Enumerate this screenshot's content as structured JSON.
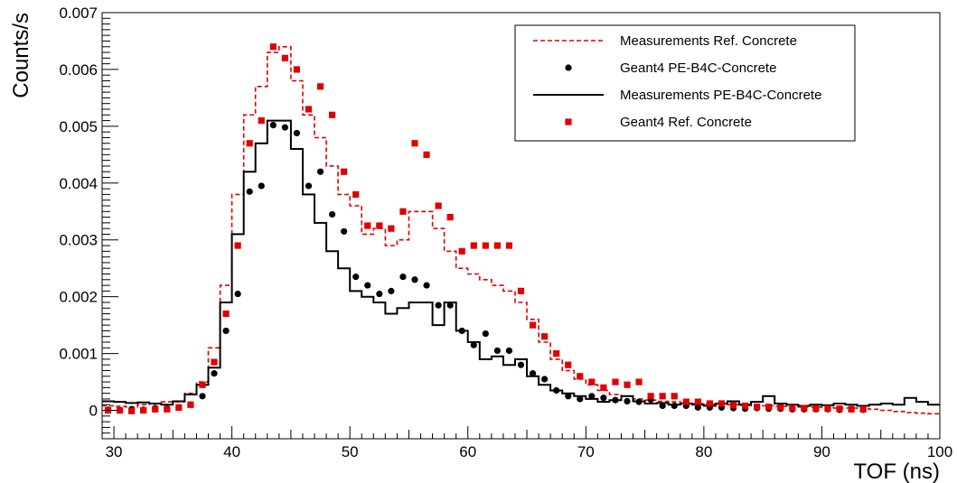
{
  "chart_data": {
    "type": "scatter",
    "xlabel": "TOF (ns)",
    "ylabel": "Counts/s",
    "xlim": [
      29,
      100
    ],
    "ylim": [
      -0.0005,
      0.007
    ],
    "x_ticks": [
      30,
      40,
      50,
      60,
      70,
      80,
      90,
      100
    ],
    "y_ticks": [
      0,
      0.001,
      0.002,
      0.003,
      0.004,
      0.005,
      0.006,
      0.007
    ],
    "y_tick_labels": [
      "0",
      "0.001",
      "0.002",
      "0.003",
      "0.004",
      "0.005",
      "0.006",
      "0.007"
    ],
    "legend_position": "top-right",
    "grid": false,
    "series": [
      {
        "name": "Measurements Ref. Concrete",
        "kind": "step",
        "style": "dashed",
        "color": "#e00000",
        "x": [
          29,
          30,
          31,
          32,
          33,
          34,
          35,
          36,
          37,
          38,
          39,
          40,
          41,
          42,
          43,
          44,
          45,
          46,
          47,
          48,
          49,
          50,
          51,
          52,
          53,
          54,
          55,
          56,
          57,
          58,
          59,
          60,
          61,
          62,
          63,
          64,
          65,
          66,
          67,
          68,
          69,
          70,
          71,
          72,
          73,
          74,
          75,
          76,
          77,
          78,
          79,
          80,
          81,
          82,
          83,
          84,
          85,
          86,
          87,
          88,
          89,
          90,
          91,
          92,
          93,
          94,
          95,
          96,
          97,
          98,
          99
        ],
        "y": [
          8e-05,
          7e-05,
          6e-05,
          0.0001,
          0.00012,
          0.00015,
          0.00015,
          0.0003,
          0.0005,
          0.0011,
          0.0022,
          0.0038,
          0.0052,
          0.0057,
          0.0063,
          0.0064,
          0.0058,
          0.0052,
          0.0048,
          0.0043,
          0.0038,
          0.0036,
          0.0031,
          0.0032,
          0.0029,
          0.003,
          0.0035,
          0.0035,
          0.0032,
          0.0028,
          0.0025,
          0.0024,
          0.0023,
          0.0022,
          0.0021,
          0.0019,
          0.0016,
          0.0012,
          0.0009,
          0.0007,
          0.00055,
          0.00045,
          0.00035,
          0.00028,
          0.00025,
          0.0002,
          0.00018,
          0.00016,
          0.00015,
          0.00013,
          0.00012,
          0.00011,
          0.0001,
          0.0001,
          9e-05,
          8e-05,
          8e-05,
          7e-05,
          7e-05,
          6e-05,
          6e-05,
          5e-05,
          4e-05,
          4e-05,
          3e-05,
          2e-05,
          0.0,
          -2e-05,
          -4e-05,
          -5e-05,
          -6e-05
        ]
      },
      {
        "name": "Geant4 PE-B4C-Concrete",
        "kind": "markers",
        "marker": "circle",
        "color": "#000000",
        "x": [
          29.5,
          30.5,
          31.5,
          32.5,
          33.5,
          34.5,
          35.5,
          36.5,
          37.5,
          38.5,
          39.5,
          40.5,
          41.5,
          42.5,
          43.5,
          44.5,
          45.5,
          46.5,
          47.5,
          48.5,
          49.5,
          50.5,
          51.5,
          52.5,
          53.5,
          54.5,
          55.5,
          56.5,
          57.5,
          58.5,
          59.5,
          60.5,
          61.5,
          62.5,
          63.5,
          64.5,
          65.5,
          66.5,
          67.5,
          68.5,
          69.5,
          70.5,
          71.5,
          72.5,
          73.5,
          74.5,
          75.5,
          76.5,
          77.5,
          78.5,
          79.5,
          80.5,
          81.5,
          82.5,
          83.5,
          84.5,
          85.5,
          86.5,
          87.5,
          88.5,
          89.5,
          90.5,
          91.5,
          92.5,
          93.5
        ],
        "y": [
          1e-05,
          0.0,
          2e-05,
          1e-05,
          4e-05,
          3e-05,
          5e-05,
          0.0001,
          0.00025,
          0.00065,
          0.0014,
          0.00205,
          0.00385,
          0.00395,
          0.00502,
          0.00498,
          0.00488,
          0.00395,
          0.0042,
          0.00345,
          0.00315,
          0.00235,
          0.0022,
          0.00205,
          0.0021,
          0.00235,
          0.0023,
          0.0022,
          0.00185,
          0.00185,
          0.0014,
          0.00115,
          0.00135,
          0.00105,
          0.00105,
          0.0008,
          0.00065,
          0.00055,
          0.00035,
          0.00025,
          0.0002,
          0.00025,
          0.00022,
          0.00018,
          0.00016,
          0.00015,
          0.00019,
          8e-05,
          8e-05,
          8e-05,
          5e-05,
          5e-05,
          5e-05,
          4e-05,
          3e-05,
          4e-05,
          3e-05,
          3e-05,
          2e-05,
          2e-05,
          2e-05,
          2e-05,
          1e-05,
          2e-05,
          1e-05
        ]
      },
      {
        "name": "Measurements PE-B4C-Concrete",
        "kind": "step",
        "style": "solid",
        "color": "#000000",
        "x": [
          29,
          30,
          31,
          32,
          33,
          34,
          35,
          36,
          37,
          38,
          39,
          40,
          41,
          42,
          43,
          44,
          45,
          46,
          47,
          48,
          49,
          50,
          51,
          52,
          53,
          54,
          55,
          56,
          57,
          58,
          59,
          60,
          61,
          62,
          63,
          64,
          65,
          66,
          67,
          68,
          69,
          70,
          71,
          72,
          73,
          74,
          75,
          76,
          77,
          78,
          79,
          80,
          81,
          82,
          83,
          84,
          85,
          86,
          87,
          88,
          89,
          90,
          91,
          92,
          93,
          94,
          95,
          96,
          97,
          98,
          99
        ],
        "y": [
          0.00016,
          0.00015,
          0.00013,
          0.00014,
          0.00012,
          0.0001,
          0.00016,
          0.00028,
          0.00045,
          0.00075,
          0.0019,
          0.0031,
          0.0042,
          0.0047,
          0.0051,
          0.0051,
          0.0046,
          0.0038,
          0.0033,
          0.0028,
          0.0025,
          0.0021,
          0.002,
          0.0019,
          0.0017,
          0.0018,
          0.0019,
          0.0019,
          0.0015,
          0.0019,
          0.0014,
          0.0012,
          0.0009,
          0.00095,
          0.0008,
          0.0009,
          0.0006,
          0.00045,
          0.00035,
          0.0003,
          0.00025,
          0.0002,
          0.00015,
          0.00018,
          0.00025,
          0.00016,
          0.00012,
          0.00013,
          0.0001,
          0.00012,
          0.0001,
          8e-05,
          0.00012,
          0.00016,
          0.0001,
          0.00015,
          0.00025,
          0.00012,
          0.0001,
          8e-05,
          0.0001,
          9e-05,
          0.00012,
          0.0001,
          8e-05,
          0.0001,
          0.00012,
          0.0001,
          0.00022,
          0.00015,
          0.0001
        ]
      },
      {
        "name": "Geant4 Ref. Concrete",
        "kind": "markers",
        "marker": "square",
        "color": "#e00000",
        "x": [
          29.5,
          30.5,
          31.5,
          32.5,
          33.5,
          34.5,
          35.5,
          36.5,
          37.5,
          38.5,
          39.5,
          40.5,
          41.5,
          42.5,
          43.5,
          44.5,
          45.5,
          46.5,
          47.5,
          48.5,
          49.5,
          50.5,
          51.5,
          52.5,
          53.5,
          54.5,
          55.5,
          56.5,
          57.5,
          58.5,
          59.5,
          60.5,
          61.5,
          62.5,
          63.5,
          64.5,
          65.5,
          66.5,
          67.5,
          68.5,
          69.5,
          70.5,
          71.5,
          72.5,
          73.5,
          74.5,
          75.5,
          76.5,
          77.5,
          78.5,
          79.5,
          80.5,
          81.5,
          82.5,
          83.5,
          84.5,
          85.5,
          86.5,
          87.5,
          88.5,
          89.5,
          90.5,
          91.5,
          92.5,
          93.5
        ],
        "y": [
          0.0,
          0.0,
          -1e-05,
          0.0,
          2e-05,
          2e-05,
          5e-05,
          0.0001,
          0.00045,
          0.00085,
          0.0017,
          0.0029,
          0.0047,
          0.0051,
          0.0064,
          0.0062,
          0.006,
          0.0053,
          0.0057,
          0.0052,
          0.0042,
          0.0038,
          0.00325,
          0.00325,
          0.0032,
          0.0035,
          0.0047,
          0.0045,
          0.0036,
          0.0034,
          0.0028,
          0.0029,
          0.0029,
          0.0029,
          0.0029,
          0.0021,
          0.0015,
          0.0013,
          0.001,
          0.0008,
          0.0006,
          0.0005,
          0.0004,
          0.0005,
          0.00045,
          0.0005,
          0.00025,
          0.00025,
          0.00025,
          0.00015,
          0.00015,
          0.00012,
          0.00012,
          9e-05,
          8e-05,
          6e-05,
          6e-05,
          5e-05,
          4e-05,
          4e-05,
          3e-05,
          3e-05,
          3e-05,
          2e-05,
          2e-05
        ]
      }
    ]
  }
}
